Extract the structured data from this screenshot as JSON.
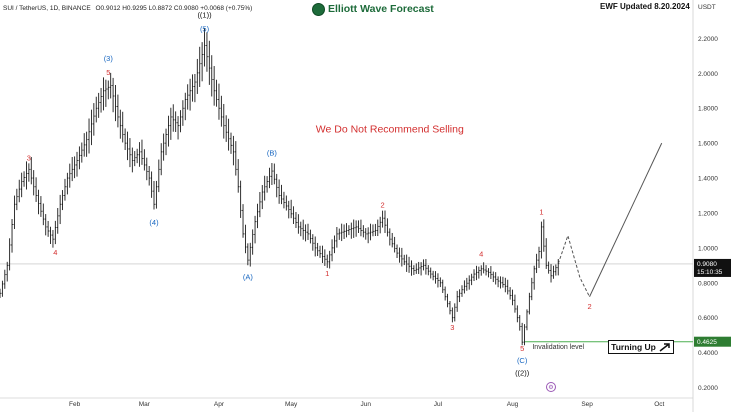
{
  "header": {
    "symbol_line": "SUI / TetherUS, 1D, BINANCE",
    "ohlc": "O0.9012 H0.9295 L0.8872 C0.9080 +0.0068 (+0.75%)",
    "brand": "Elliott Wave Forecast",
    "update_label": "EWF Updated 8.20.2024",
    "currency": "USDT"
  },
  "chart_data": {
    "type": "candlestick",
    "symbol": "SUI / TetherUS",
    "timeframe": "1D",
    "exchange": "BINANCE",
    "last_price": "0.9080",
    "countdown": "15:10:35",
    "invalidation_price": "0.4625",
    "ylim": [
      0.14,
      2.42
    ],
    "y_ticks": [
      0.2,
      0.4,
      0.6,
      0.8,
      1.0,
      1.2,
      1.4,
      1.6,
      1.8,
      2.0,
      2.2
    ],
    "x_range": [
      "2024-01-01",
      "2024-10-15"
    ],
    "x_ticks": [
      {
        "label": "Feb",
        "date": "2024-02-01"
      },
      {
        "label": "Mar",
        "date": "2024-03-01"
      },
      {
        "label": "Apr",
        "date": "2024-04-01"
      },
      {
        "label": "May",
        "date": "2024-05-01"
      },
      {
        "label": "Jun",
        "date": "2024-06-01"
      },
      {
        "label": "Jul",
        "date": "2024-07-01"
      },
      {
        "label": "Aug",
        "date": "2024-08-01"
      },
      {
        "label": "Sep",
        "date": "2024-09-01"
      },
      {
        "label": "Oct",
        "date": "2024-10-01"
      }
    ],
    "price_path": [
      [
        "2024-01-01",
        0.74
      ],
      [
        "2024-01-04",
        0.9
      ],
      [
        "2024-01-07",
        1.25
      ],
      [
        "2024-01-10",
        1.38
      ],
      [
        "2024-01-13",
        1.45
      ],
      [
        "2024-01-16",
        1.3
      ],
      [
        "2024-01-20",
        1.12
      ],
      [
        "2024-01-23",
        1.05
      ],
      [
        "2024-01-26",
        1.25
      ],
      [
        "2024-01-29",
        1.4
      ],
      [
        "2024-02-02",
        1.5
      ],
      [
        "2024-02-06",
        1.62
      ],
      [
        "2024-02-10",
        1.8
      ],
      [
        "2024-02-13",
        1.9
      ],
      [
        "2024-02-16",
        1.93
      ],
      [
        "2024-02-19",
        1.75
      ],
      [
        "2024-02-22",
        1.6
      ],
      [
        "2024-02-25",
        1.5
      ],
      [
        "2024-02-28",
        1.55
      ],
      [
        "2024-03-03",
        1.4
      ],
      [
        "2024-03-05",
        1.25
      ],
      [
        "2024-03-08",
        1.55
      ],
      [
        "2024-03-12",
        1.75
      ],
      [
        "2024-03-15",
        1.7
      ],
      [
        "2024-03-18",
        1.85
      ],
      [
        "2024-03-22",
        1.95
      ],
      [
        "2024-03-26",
        2.16
      ],
      [
        "2024-03-30",
        1.9
      ],
      [
        "2024-04-03",
        1.7
      ],
      [
        "2024-04-07",
        1.55
      ],
      [
        "2024-04-09",
        1.35
      ],
      [
        "2024-04-11",
        1.08
      ],
      [
        "2024-04-13",
        0.93
      ],
      [
        "2024-04-16",
        1.15
      ],
      [
        "2024-04-19",
        1.32
      ],
      [
        "2024-04-23",
        1.44
      ],
      [
        "2024-04-26",
        1.3
      ],
      [
        "2024-04-30",
        1.22
      ],
      [
        "2024-05-04",
        1.12
      ],
      [
        "2024-05-08",
        1.08
      ],
      [
        "2024-05-11",
        1.0
      ],
      [
        "2024-05-14",
        0.95
      ],
      [
        "2024-05-16",
        0.92
      ],
      [
        "2024-05-20",
        1.08
      ],
      [
        "2024-05-24",
        1.1
      ],
      [
        "2024-05-28",
        1.12
      ],
      [
        "2024-06-01",
        1.08
      ],
      [
        "2024-06-05",
        1.1
      ],
      [
        "2024-06-08",
        1.17
      ],
      [
        "2024-06-11",
        1.05
      ],
      [
        "2024-06-14",
        0.97
      ],
      [
        "2024-06-17",
        0.92
      ],
      [
        "2024-06-21",
        0.87
      ],
      [
        "2024-06-25",
        0.9
      ],
      [
        "2024-06-28",
        0.85
      ],
      [
        "2024-07-02",
        0.8
      ],
      [
        "2024-07-05",
        0.68
      ],
      [
        "2024-07-07",
        0.6
      ],
      [
        "2024-07-09",
        0.72
      ],
      [
        "2024-07-12",
        0.78
      ],
      [
        "2024-07-16",
        0.85
      ],
      [
        "2024-07-19",
        0.88
      ],
      [
        "2024-07-22",
        0.86
      ],
      [
        "2024-07-25",
        0.82
      ],
      [
        "2024-07-29",
        0.78
      ],
      [
        "2024-08-01",
        0.7
      ],
      [
        "2024-08-04",
        0.55
      ],
      [
        "2024-08-05",
        0.46
      ],
      [
        "2024-08-08",
        0.72
      ],
      [
        "2024-08-10",
        0.88
      ],
      [
        "2024-08-12",
        0.98
      ],
      [
        "2024-08-13",
        1.12
      ],
      [
        "2024-08-15",
        0.9
      ],
      [
        "2024-08-17",
        0.84
      ],
      [
        "2024-08-20",
        0.91
      ]
    ],
    "projection": {
      "dashed": [
        [
          "2024-08-20",
          0.91
        ],
        [
          "2024-08-24",
          1.07
        ],
        [
          "2024-08-29",
          0.83
        ],
        [
          "2024-09-02",
          0.72
        ]
      ],
      "solid": [
        [
          "2024-09-02",
          0.72
        ],
        [
          "2024-10-02",
          1.6
        ]
      ]
    },
    "wave_labels": [
      {
        "text": "3",
        "date": "2024-01-13",
        "price": 1.5,
        "color": "#d32f2f"
      },
      {
        "text": "4",
        "date": "2024-01-24",
        "price": 0.96,
        "color": "#d32f2f"
      },
      {
        "text": "(3)",
        "date": "2024-02-15",
        "price": 2.07,
        "color": "#1565c0"
      },
      {
        "text": "5",
        "date": "2024-02-15",
        "price": 1.99,
        "color": "#d32f2f"
      },
      {
        "text": "(4)",
        "date": "2024-03-05",
        "price": 1.13,
        "color": "#1565c0"
      },
      {
        "text": "((1))",
        "date": "2024-03-26",
        "price": 2.32,
        "color": "#111111"
      },
      {
        "text": "(5)",
        "date": "2024-03-26",
        "price": 2.24,
        "color": "#1565c0"
      },
      {
        "text": "(B)",
        "date": "2024-04-23",
        "price": 1.53,
        "color": "#1565c0"
      },
      {
        "text": "(A)",
        "date": "2024-04-13",
        "price": 0.82,
        "color": "#1565c0"
      },
      {
        "text": "1",
        "date": "2024-05-16",
        "price": 0.84,
        "color": "#d32f2f"
      },
      {
        "text": "2",
        "date": "2024-06-08",
        "price": 1.23,
        "color": "#d32f2f"
      },
      {
        "text": "3",
        "date": "2024-07-07",
        "price": 0.53,
        "color": "#d32f2f"
      },
      {
        "text": "4",
        "date": "2024-07-19",
        "price": 0.95,
        "color": "#d32f2f"
      },
      {
        "text": "1",
        "date": "2024-08-13",
        "price": 1.19,
        "color": "#d32f2f"
      },
      {
        "text": "5",
        "date": "2024-08-05",
        "price": 0.41,
        "color": "#d32f2f"
      },
      {
        "text": "(C)",
        "date": "2024-08-05",
        "price": 0.34,
        "color": "#1565c0"
      },
      {
        "text": "((2))",
        "date": "2024-08-05",
        "price": 0.27,
        "color": "#111111"
      },
      {
        "text": "2",
        "date": "2024-09-02",
        "price": 0.65,
        "color": "#d32f2f"
      }
    ],
    "annotations": [
      {
        "text": "We Do Not Recommend Selling",
        "date": "2024-06-11",
        "price": 1.66,
        "color": "#d32f2f"
      },
      {
        "text": "Invalidation level",
        "date": "2024-08-20",
        "price": 0.42,
        "color": "#333333"
      }
    ],
    "callout": "Turning Up"
  },
  "colors": {
    "candle": "#1a1a1a",
    "last_price_tag": "#111111",
    "invalidation_line": "#4caf50",
    "invalidation_tag": "#2e7d32",
    "projection": "#555555",
    "price_line": "#bbbbbb"
  }
}
